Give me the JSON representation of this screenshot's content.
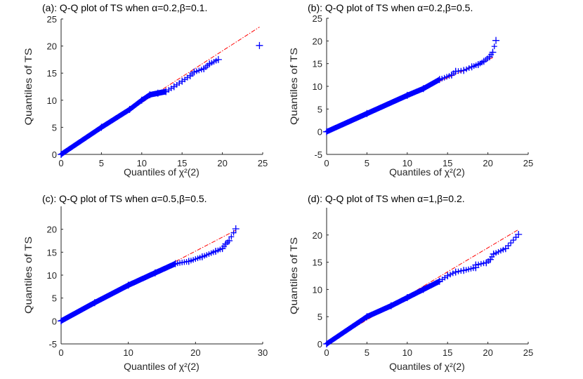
{
  "chart_data": [
    {
      "type": "scatter",
      "title": "(a): Q-Q plot of TS when α=0.2,β=0.1.",
      "xlabel": "Quantiles of χ²(2)",
      "ylabel": "Quantiles of TS",
      "xlim": [
        0,
        25
      ],
      "ylim": [
        0,
        25
      ],
      "xticks": [
        0,
        5,
        10,
        15,
        20,
        25
      ],
      "yticks": [
        0,
        5,
        10,
        15,
        20,
        25
      ],
      "points": [
        [
          0,
          0
        ],
        [
          5,
          5
        ],
        [
          8.5,
          8.3
        ],
        [
          10,
          10
        ],
        [
          11,
          11
        ],
        [
          12,
          11.3
        ],
        [
          13,
          11.6
        ],
        [
          14,
          12.5
        ],
        [
          15,
          13.5
        ],
        [
          16,
          14.5
        ],
        [
          16.5,
          15.2
        ],
        [
          17.7,
          15.8
        ],
        [
          18.4,
          16.7
        ],
        [
          19.5,
          17.5
        ],
        [
          24.6,
          20.1
        ]
      ],
      "reference_line": [
        [
          0,
          0
        ],
        [
          24.6,
          23.5
        ]
      ]
    },
    {
      "type": "scatter",
      "title": "(b): Q-Q plot of TS when α=0.2,β=0.5.",
      "xlabel": "Quantiles of χ²(2)",
      "ylabel": "Quantiles of TS",
      "xlim": [
        0,
        25
      ],
      "ylim": [
        -5,
        25
      ],
      "xticks": [
        0,
        5,
        10,
        15,
        20,
        25
      ],
      "yticks": [
        -5,
        0,
        5,
        10,
        15,
        20,
        25
      ],
      "points": [
        [
          0,
          0
        ],
        [
          5,
          4
        ],
        [
          10,
          8
        ],
        [
          12,
          9.5
        ],
        [
          14,
          11.5
        ],
        [
          15.5,
          12.5
        ],
        [
          16,
          13.3
        ],
        [
          17,
          13.5
        ],
        [
          18,
          14.3
        ],
        [
          18.8,
          14.8
        ],
        [
          19.5,
          15.5
        ],
        [
          20.2,
          16.5
        ],
        [
          20.6,
          17.5
        ],
        [
          21,
          20.1
        ]
      ],
      "reference_line": [
        [
          0,
          0
        ],
        [
          20.7,
          16.4
        ]
      ]
    },
    {
      "type": "scatter",
      "title": "(c): Q-Q plot of TS when α=0.5,β=0.5.",
      "xlabel": "Quantiles of χ²(2)",
      "ylabel": "Quantiles of TS",
      "xlim": [
        0,
        30
      ],
      "ylim": [
        -5,
        25
      ],
      "xticks": [
        0,
        10,
        20,
        30
      ],
      "yticks": [
        -5,
        0,
        5,
        10,
        15,
        20
      ],
      "points": [
        [
          0,
          0
        ],
        [
          5,
          4
        ],
        [
          10,
          7.8
        ],
        [
          14,
          10.5
        ],
        [
          17,
          12.5
        ],
        [
          19,
          13
        ],
        [
          21,
          14
        ],
        [
          23,
          15.2
        ],
        [
          24,
          15.8
        ],
        [
          24.5,
          16.8
        ],
        [
          25,
          17.5
        ],
        [
          26,
          20.1
        ]
      ],
      "reference_line": [
        [
          0,
          0
        ],
        [
          26,
          19.8
        ]
      ]
    },
    {
      "type": "scatter",
      "title": "(d): Q-Q plot of TS when α=1,β=0.2.",
      "xlabel": "Quantiles of χ²(2)",
      "ylabel": "Quantiles of TS",
      "xlim": [
        0,
        25
      ],
      "ylim": [
        0,
        25
      ],
      "xticks": [
        0,
        5,
        10,
        15,
        20,
        25
      ],
      "yticks": [
        0,
        5,
        10,
        15,
        20
      ],
      "points": [
        [
          0,
          0
        ],
        [
          5,
          5
        ],
        [
          8,
          7
        ],
        [
          10,
          8.5
        ],
        [
          12,
          10
        ],
        [
          14,
          11.5
        ],
        [
          15,
          12.5
        ],
        [
          16,
          13.2
        ],
        [
          17,
          13.5
        ],
        [
          18.5,
          14
        ],
        [
          18.5,
          14.5
        ],
        [
          19.8,
          14.9
        ],
        [
          20.3,
          15.5
        ],
        [
          20.7,
          16.5
        ],
        [
          22.2,
          17.5
        ],
        [
          23.8,
          20.1
        ]
      ],
      "reference_line": [
        [
          0,
          0
        ],
        [
          23.8,
          21
        ]
      ]
    }
  ],
  "colors": {
    "points": "#0000ff",
    "line": "#ff0000"
  }
}
